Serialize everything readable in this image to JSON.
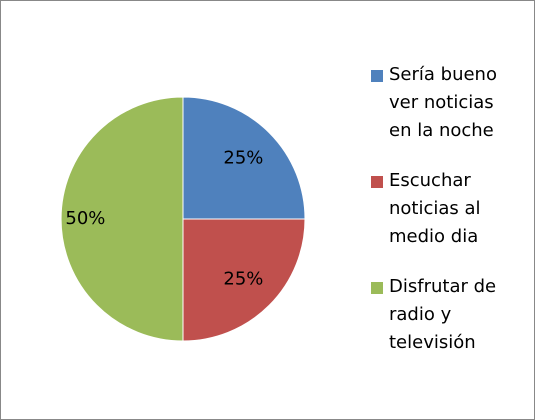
{
  "chart_data": {
    "type": "pie",
    "categories": [
      "Sería bueno ver noticias en la noche",
      "Escuchar noticias al medio dia",
      "Disfrutar de radio y televisión"
    ],
    "values": [
      25,
      25,
      50
    ],
    "value_labels": [
      "25%",
      "25%",
      "50%"
    ],
    "colors": [
      "#4f81bd",
      "#c0504d",
      "#9bbb59"
    ],
    "legend": "right"
  }
}
